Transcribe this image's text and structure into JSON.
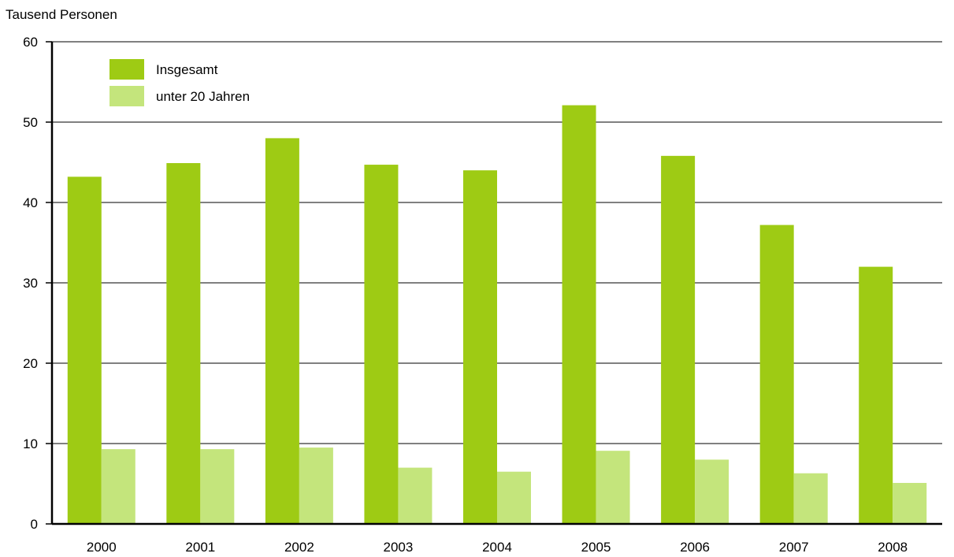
{
  "chart_data": {
    "type": "bar",
    "ylabel": "Tausend Personen",
    "xlabel": "",
    "title": "",
    "categories": [
      "2000",
      "2001",
      "2002",
      "2003",
      "2004",
      "2005",
      "2006",
      "2007",
      "2008"
    ],
    "series": [
      {
        "name": "Insgesamt",
        "color": "#9ecb14",
        "values": [
          43.2,
          44.9,
          48.0,
          44.7,
          44.0,
          52.1,
          45.8,
          37.2,
          32.0
        ]
      },
      {
        "name": "unter 20 Jahren",
        "color": "#c4e57c",
        "values": [
          9.3,
          9.3,
          9.5,
          7.0,
          6.5,
          9.1,
          8.0,
          6.3,
          5.1
        ]
      }
    ],
    "ylim": [
      0,
      60
    ],
    "yticks": [
      0,
      10,
      20,
      30,
      40,
      50,
      60
    ],
    "grid": true,
    "legend_position": "top-left"
  }
}
